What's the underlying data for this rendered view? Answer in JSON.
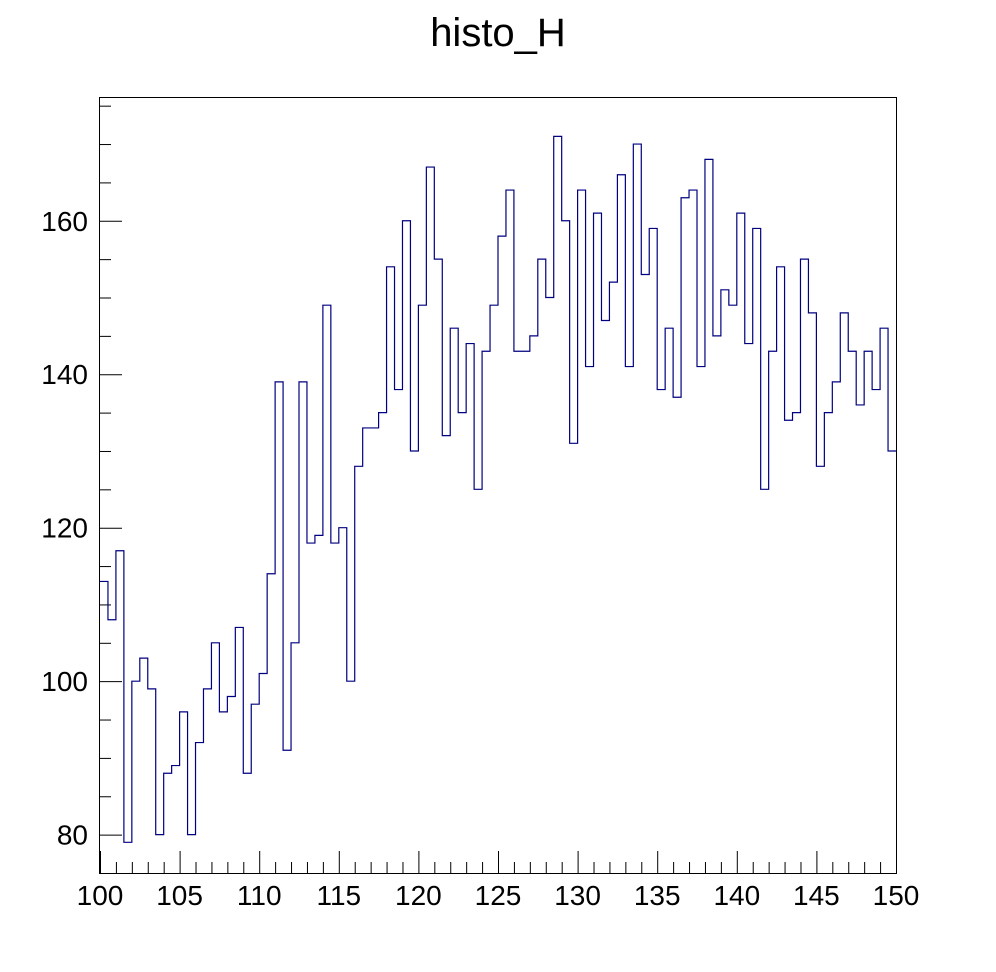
{
  "chart_data": {
    "type": "histogram",
    "title": "histo_H",
    "xlabel": "",
    "ylabel": "",
    "xlim": [
      100,
      150
    ],
    "ylim": [
      75,
      176
    ],
    "bin_width": 0.5,
    "x_ticks": [
      "100",
      "105",
      "110",
      "115",
      "120",
      "125",
      "130",
      "135",
      "140",
      "145",
      "150"
    ],
    "y_ticks": [
      "80",
      "100",
      "120",
      "140",
      "160"
    ],
    "grid": false,
    "legend": "none",
    "line_color": "#000080",
    "bin_lows": [
      100,
      100.5,
      101,
      101.5,
      102,
      102.5,
      103,
      103.5,
      104,
      104.5,
      105,
      105.5,
      106,
      106.5,
      107,
      107.5,
      108,
      108.5,
      109,
      109.5,
      110,
      110.5,
      111,
      111.5,
      112,
      112.5,
      113,
      113.5,
      114,
      114.5,
      115,
      115.5,
      116,
      116.5,
      117,
      117.5,
      118,
      118.5,
      119,
      119.5,
      120,
      120.5,
      121,
      121.5,
      122,
      122.5,
      123,
      123.5,
      124,
      124.5,
      125,
      125.5,
      126,
      126.5,
      127,
      127.5,
      128,
      128.5,
      129,
      129.5,
      130,
      130.5,
      131,
      131.5,
      132,
      132.5,
      133,
      133.5,
      134,
      134.5,
      135,
      135.5,
      136,
      136.5,
      137,
      137.5,
      138,
      138.5,
      139,
      139.5,
      140,
      140.5,
      141,
      141.5,
      142,
      142.5,
      143,
      143.5,
      144,
      144.5,
      145,
      145.5,
      146,
      146.5,
      147,
      147.5,
      148,
      148.5,
      149,
      149.5
    ],
    "values": [
      113,
      108,
      117,
      79,
      100,
      103,
      99,
      80,
      88,
      89,
      96,
      80,
      92,
      99,
      105,
      96,
      98,
      107,
      88,
      97,
      101,
      114,
      139,
      91,
      105,
      139,
      118,
      119,
      149,
      118,
      120,
      100,
      128,
      133,
      133,
      135,
      154,
      138,
      160,
      130,
      149,
      167,
      155,
      132,
      146,
      135,
      144,
      125,
      143,
      149,
      158,
      164,
      143,
      143,
      145,
      155,
      150,
      171,
      160,
      131,
      164,
      141,
      161,
      147,
      152,
      166,
      141,
      170,
      153,
      159,
      138,
      146,
      137,
      163,
      164,
      141,
      168,
      145,
      151,
      149,
      161,
      144,
      159,
      125,
      143,
      154,
      134,
      135,
      155,
      148,
      128,
      135,
      139,
      148,
      143,
      136,
      143,
      138,
      146,
      130
    ]
  }
}
